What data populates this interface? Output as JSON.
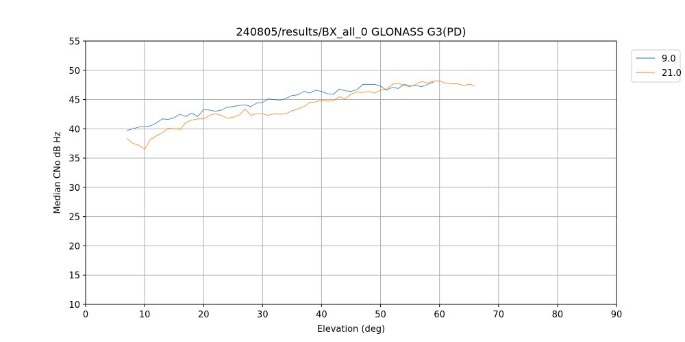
{
  "chart_data": {
    "type": "line",
    "title": "240805/results/BX_all_0 GLONASS G3(PD)",
    "xlabel": "Elevation (deg)",
    "ylabel": "Median CNo dB Hz",
    "xlim": [
      0,
      90
    ],
    "ylim": [
      10,
      55
    ],
    "xticks": [
      0,
      10,
      20,
      30,
      40,
      50,
      60,
      70,
      80,
      90
    ],
    "yticks": [
      10,
      15,
      20,
      25,
      30,
      35,
      40,
      45,
      50,
      55
    ],
    "grid": true,
    "legend_position": "outside-top-right",
    "series": [
      {
        "name": "9.0",
        "color": "#1f77b4",
        "x": [
          7,
          8,
          9,
          10,
          11,
          12,
          13,
          14,
          15,
          16,
          17,
          18,
          19,
          20,
          21,
          22,
          23,
          24,
          25,
          26,
          27,
          28,
          29,
          30,
          31,
          32,
          33,
          34,
          35,
          36,
          37,
          38,
          39,
          40,
          41,
          42,
          43,
          44,
          45,
          46,
          47,
          48,
          49,
          50,
          51,
          52,
          53,
          54,
          55,
          56,
          57,
          58,
          59
        ],
        "y": [
          39.7,
          40.0,
          40.3,
          40.4,
          40.5,
          41.0,
          41.7,
          41.6,
          41.9,
          42.5,
          42.1,
          42.7,
          42.1,
          43.3,
          43.2,
          43.0,
          43.2,
          43.7,
          43.8,
          44.0,
          44.1,
          43.8,
          44.4,
          44.5,
          45.1,
          45.0,
          44.9,
          45.2,
          45.7,
          45.8,
          46.4,
          46.1,
          46.6,
          46.4,
          46.0,
          45.9,
          46.8,
          46.5,
          46.4,
          46.7,
          47.6,
          47.6,
          47.6,
          47.3,
          46.6,
          47.1,
          46.9,
          47.6,
          47.3,
          47.4,
          47.2,
          47.6,
          48.0
        ]
      },
      {
        "name": "21.0",
        "color": "#ff7f0e",
        "x": [
          7,
          8,
          9,
          10,
          11,
          12,
          13,
          14,
          15,
          16,
          17,
          18,
          19,
          20,
          21,
          22,
          23,
          24,
          25,
          26,
          27,
          28,
          29,
          30,
          31,
          32,
          33,
          34,
          35,
          36,
          37,
          38,
          39,
          40,
          41,
          42,
          43,
          44,
          45,
          46,
          47,
          48,
          49,
          50,
          51,
          52,
          53,
          54,
          55,
          56,
          57,
          58,
          59,
          60,
          61,
          62,
          63,
          64,
          65,
          66
        ],
        "y": [
          38.4,
          37.5,
          37.2,
          36.5,
          38.2,
          38.8,
          39.3,
          40.1,
          40.0,
          39.9,
          41.1,
          41.5,
          41.7,
          41.7,
          42.3,
          42.6,
          42.3,
          41.8,
          42.0,
          42.3,
          43.4,
          42.3,
          42.6,
          42.6,
          42.3,
          42.6,
          42.5,
          42.6,
          43.1,
          43.4,
          43.8,
          44.5,
          44.6,
          44.9,
          44.7,
          44.8,
          45.5,
          45.1,
          45.9,
          46.3,
          46.2,
          46.4,
          46.1,
          46.6,
          46.8,
          47.6,
          47.8,
          47.4,
          47.2,
          47.6,
          48.1,
          47.8,
          48.2,
          48.2,
          47.8,
          47.7,
          47.7,
          47.4,
          47.6,
          47.4
        ]
      }
    ]
  }
}
